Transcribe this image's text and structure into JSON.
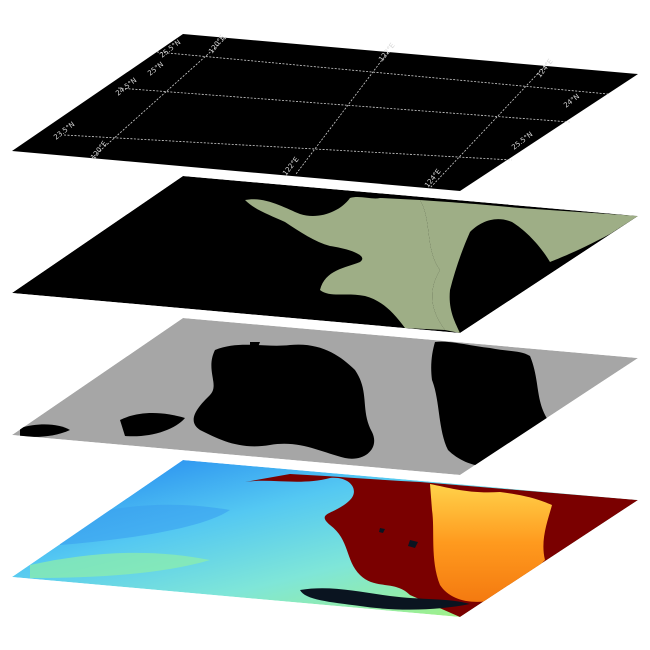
{
  "figure": {
    "layers": [
      {
        "id": "graticule",
        "role": "lat/lon grid layer",
        "fill": "#000000",
        "line_color": "#cfcfcf"
      },
      {
        "id": "land-mask",
        "role": "land/sea mask layer",
        "fill": "#000000",
        "mask_color": "#9eae86"
      },
      {
        "id": "cloud-mask",
        "role": "cloud mask layer",
        "fill": "#a6a6a6",
        "cloud_color": "#000000"
      },
      {
        "id": "sst",
        "role": "sea surface temperature layer",
        "colormap": "jet",
        "land_color": "#7a0000"
      }
    ],
    "graticule_labels": [
      "25.5°N",
      "120°E",
      "122°E",
      "124°E",
      "25°N",
      "24.5°N",
      "120°E",
      "122°E",
      "124°E",
      "24°N",
      "23.5°N",
      "25.5°N"
    ]
  }
}
